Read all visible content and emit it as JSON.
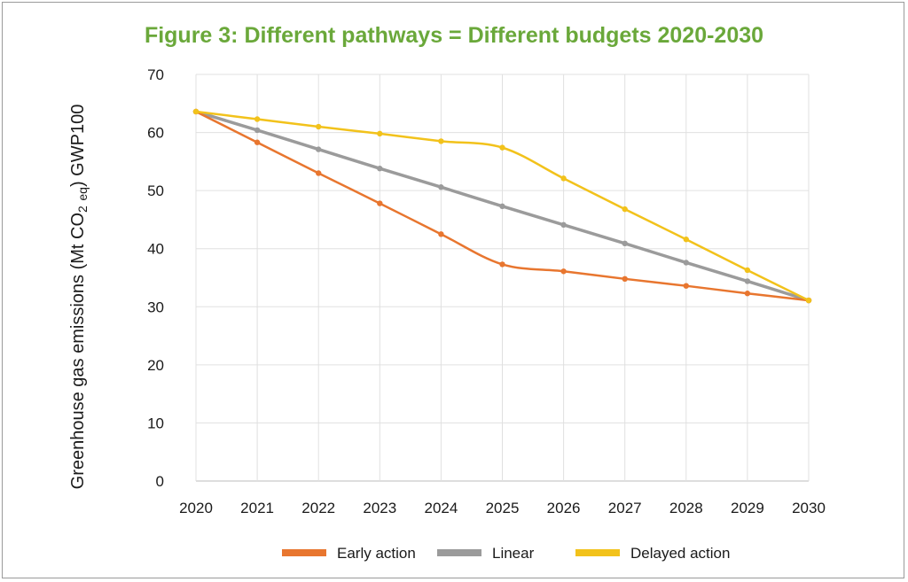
{
  "figure": {
    "title": "Figure 3: Different pathways = Different budgets 2020-2030"
  },
  "chart_data": {
    "type": "line",
    "title": "Figure 3: Different pathways = Different budgets 2020-2030",
    "ylabel_parts": {
      "pre": "Greenhouse gas emissions (Mt CO",
      "sub1": "2",
      "sub2": "eq",
      "post": ") GWP100"
    },
    "x": [
      "2020",
      "2021",
      "2022",
      "2023",
      "2024",
      "2025",
      "2026",
      "2027",
      "2028",
      "2029",
      "2030"
    ],
    "ylim": [
      0,
      70
    ],
    "yticks": [
      0,
      10,
      20,
      30,
      40,
      50,
      60,
      70
    ],
    "grid": "vertical and horizontal",
    "legend_position": "bottom",
    "series": [
      {
        "name": "Early action",
        "color": "#e8762f",
        "values": [
          63.6,
          58.3,
          53.0,
          47.8,
          42.5,
          37.3,
          36.1,
          34.8,
          33.6,
          32.3,
          31.1
        ]
      },
      {
        "name": "Linear",
        "color": "#9b9b9b",
        "values": [
          63.6,
          60.4,
          57.1,
          53.8,
          50.6,
          47.3,
          44.1,
          40.9,
          37.6,
          34.4,
          31.1
        ]
      },
      {
        "name": "Delayed action",
        "color": "#f2c21b",
        "values": [
          63.6,
          62.3,
          61.0,
          59.8,
          58.5,
          57.4,
          52.1,
          46.8,
          41.6,
          36.3,
          31.1
        ]
      }
    ]
  }
}
